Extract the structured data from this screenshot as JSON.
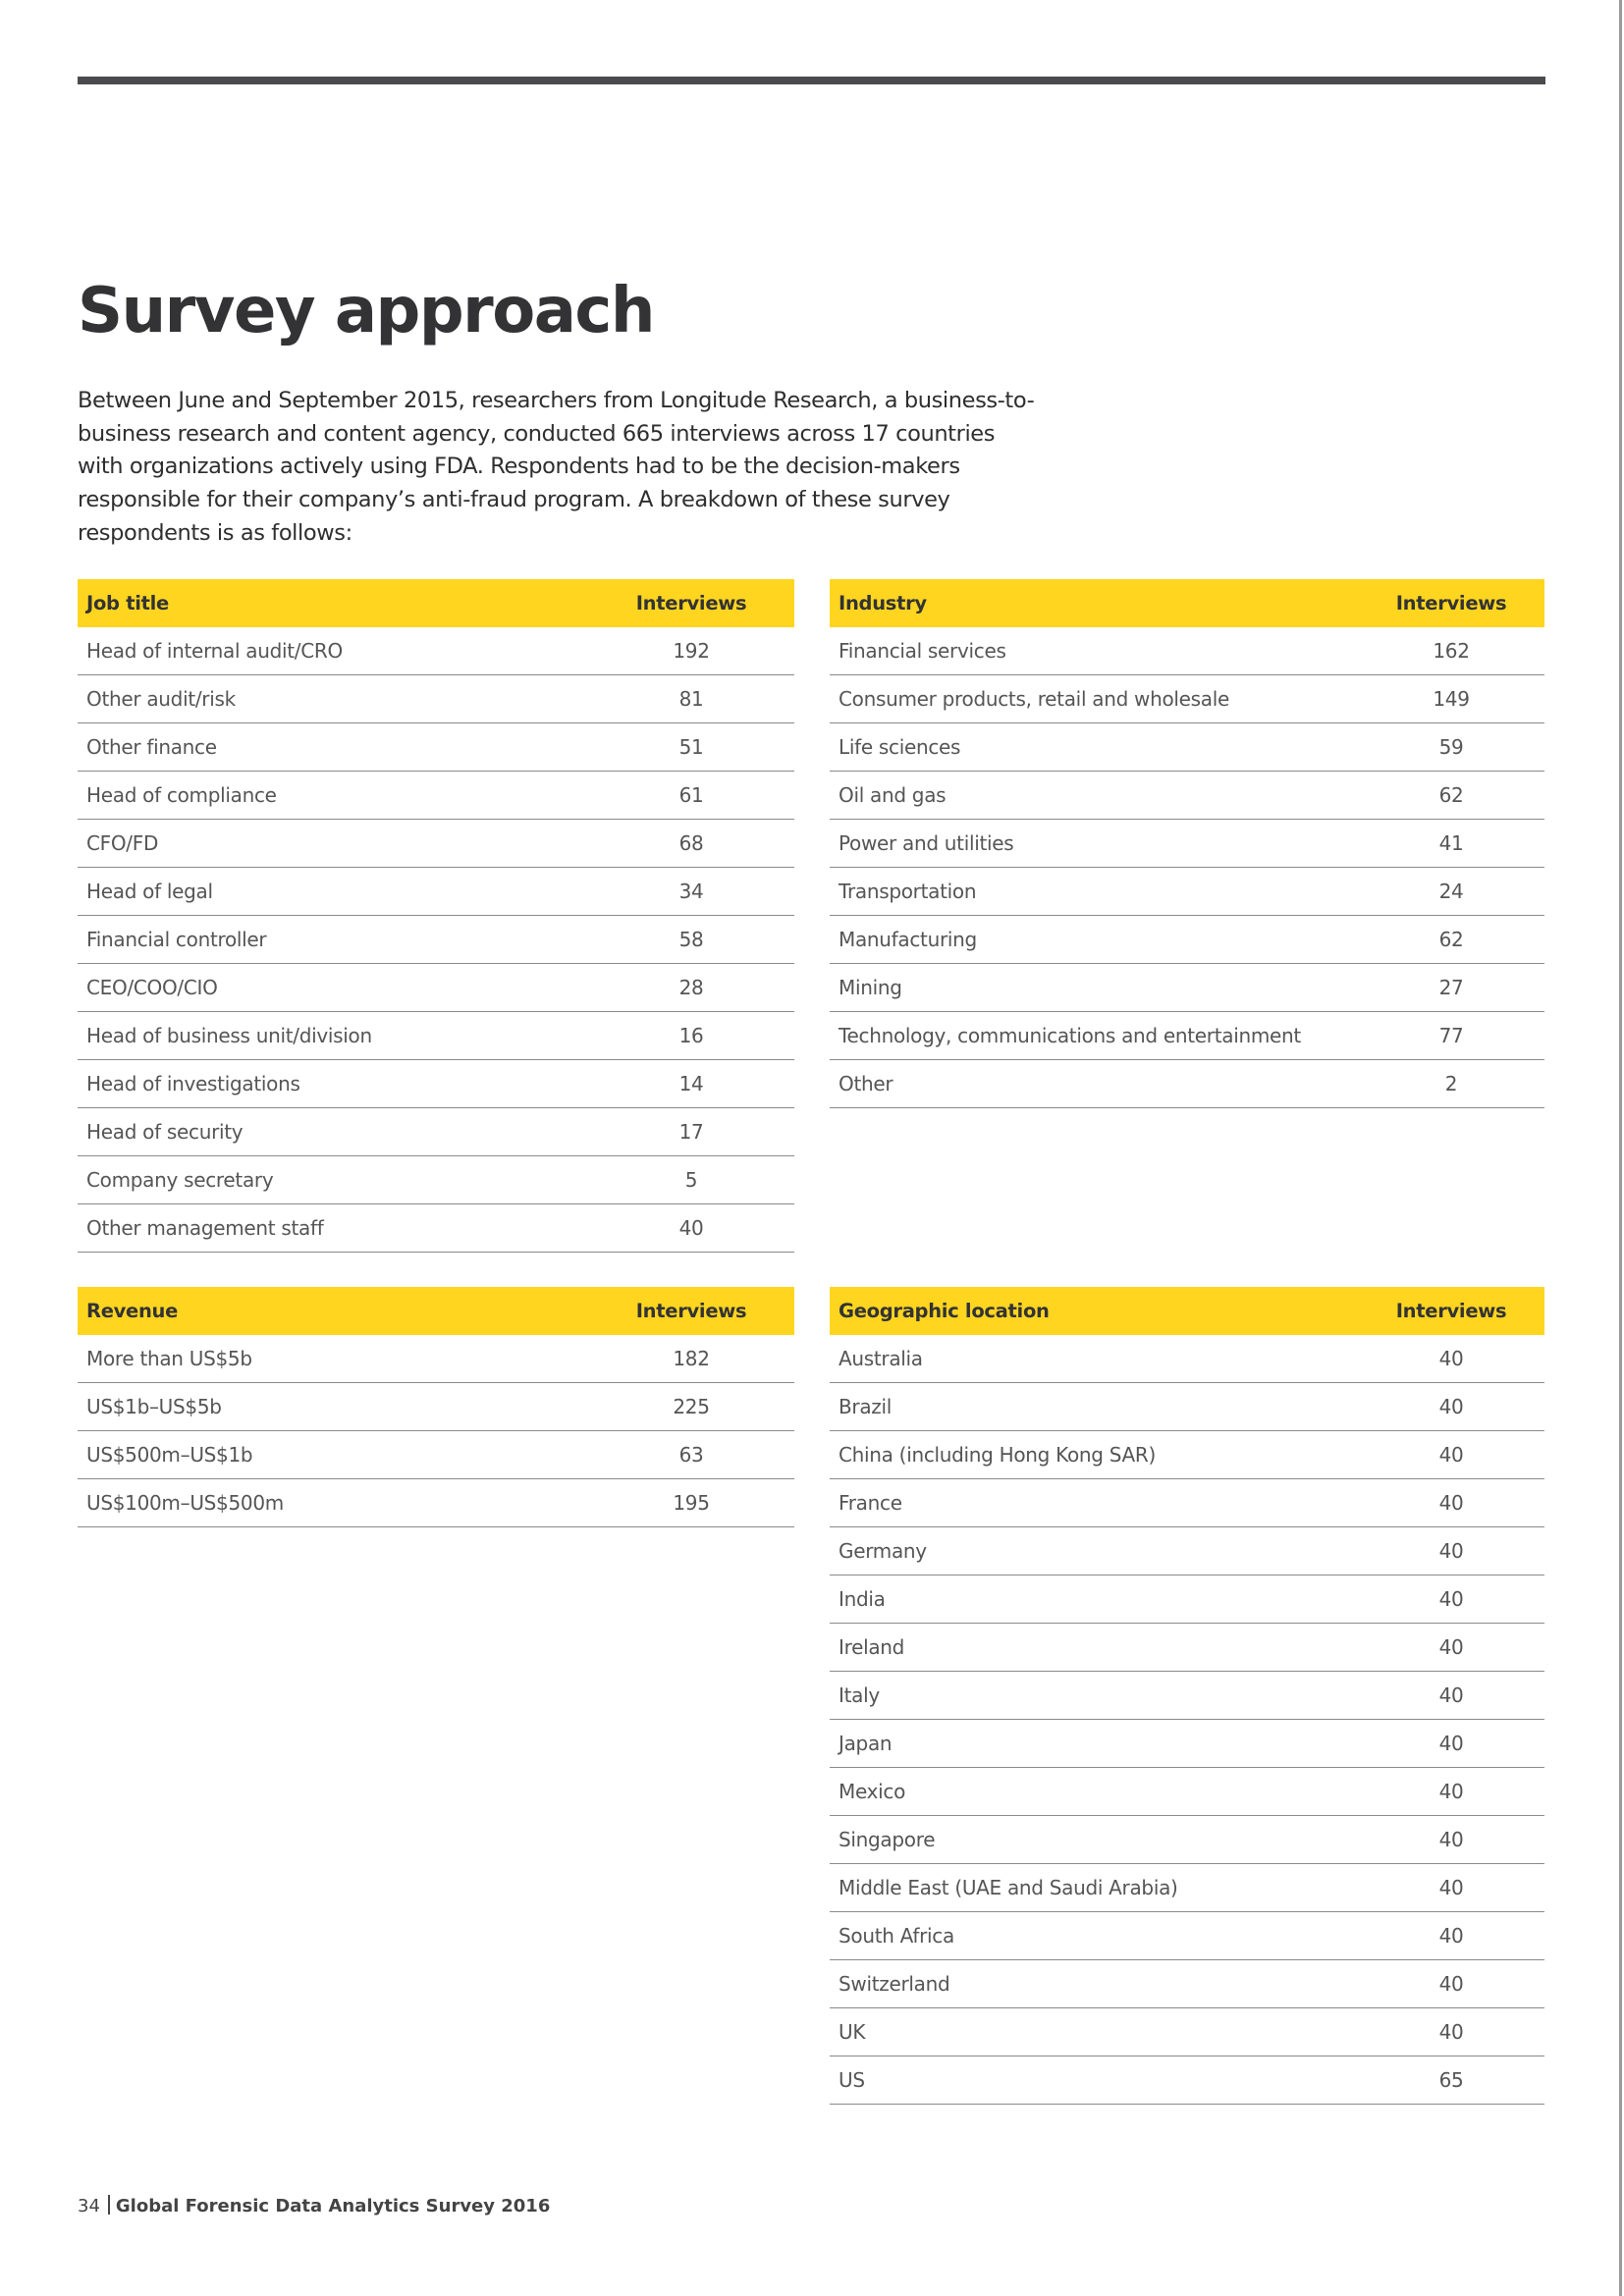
{
  "title": "Survey approach",
  "intro": "Between June and September 2015, researchers from Longitude Research, a business-to-business research and content agency, conducted 665 interviews across 17 countries with organizations actively using FDA. Respondents had to be the decision-makers responsible for their company’s anti-fraud program. A breakdown of these survey respondents is as follows:",
  "colors": {
    "accent": "#ffd520",
    "rule": "#4b4b4d"
  },
  "tables": {
    "job": {
      "header": [
        "Job title",
        "Interviews"
      ],
      "rows": [
        [
          "Head of internal audit/CRO",
          "192"
        ],
        [
          "Other audit/risk",
          "81"
        ],
        [
          "Other finance",
          "51"
        ],
        [
          "Head of compliance",
          "61"
        ],
        [
          "CFO/FD",
          "68"
        ],
        [
          "Head of legal",
          "34"
        ],
        [
          "Financial controller",
          "58"
        ],
        [
          "CEO/COO/CIO",
          "28"
        ],
        [
          "Head of business unit/division",
          "16"
        ],
        [
          "Head of investigations",
          "14"
        ],
        [
          "Head of security",
          "17"
        ],
        [
          "Company secretary",
          "5"
        ],
        [
          "Other management staff",
          "40"
        ]
      ]
    },
    "industry": {
      "header": [
        "Industry",
        "Interviews"
      ],
      "rows": [
        [
          "Financial services",
          "162"
        ],
        [
          "Consumer products, retail and wholesale",
          "149"
        ],
        [
          "Life sciences",
          "59"
        ],
        [
          "Oil and gas",
          "62"
        ],
        [
          "Power and utilities",
          "41"
        ],
        [
          "Transportation",
          "24"
        ],
        [
          "Manufacturing",
          "62"
        ],
        [
          "Mining",
          "27"
        ],
        [
          "Technology, communications and entertainment",
          "77"
        ],
        [
          "Other",
          "2"
        ]
      ]
    },
    "revenue": {
      "header": [
        "Revenue",
        "Interviews"
      ],
      "rows": [
        [
          "More than US$5b",
          "182"
        ],
        [
          "US$1b–US$5b",
          "225"
        ],
        [
          "US$500m–US$1b",
          "63"
        ],
        [
          "US$100m–US$500m",
          "195"
        ]
      ]
    },
    "geo": {
      "header": [
        "Geographic location",
        "Interviews"
      ],
      "rows": [
        [
          "Australia",
          "40"
        ],
        [
          "Brazil",
          "40"
        ],
        [
          "China (including Hong Kong SAR)",
          "40"
        ],
        [
          "France",
          "40"
        ],
        [
          "Germany",
          "40"
        ],
        [
          "India",
          "40"
        ],
        [
          "Ireland",
          "40"
        ],
        [
          "Italy",
          "40"
        ],
        [
          "Japan",
          "40"
        ],
        [
          "Mexico",
          "40"
        ],
        [
          "Singapore",
          "40"
        ],
        [
          "Middle East (UAE and Saudi Arabia)",
          "40"
        ],
        [
          "South Africa",
          "40"
        ],
        [
          "Switzerland",
          "40"
        ],
        [
          "UK",
          "40"
        ],
        [
          "US",
          "65"
        ]
      ]
    }
  },
  "footer": {
    "page": "34",
    "title": "Global Forensic Data Analytics Survey 2016"
  }
}
